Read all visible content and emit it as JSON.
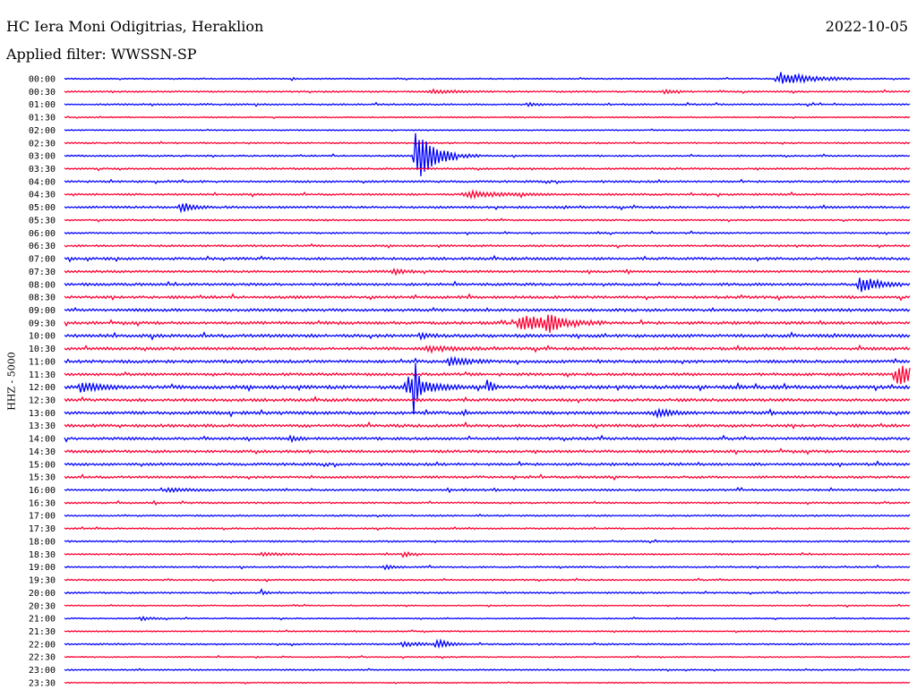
{
  "header": {
    "station": "HC Iera Moni Odigitrias, Heraklion",
    "date": "2022-10-05",
    "filter": "Applied filter: WWSSN-SP"
  },
  "chart_data": {
    "type": "line",
    "ylabel": "HHZ - 5000",
    "colors": [
      "#0000ff",
      "#ff0033"
    ],
    "rows": [
      "00:00",
      "00:30",
      "01:00",
      "01:30",
      "02:00",
      "02:30",
      "03:00",
      "03:30",
      "04:00",
      "04:30",
      "05:00",
      "05:30",
      "06:00",
      "06:30",
      "07:00",
      "07:30",
      "08:00",
      "08:30",
      "09:00",
      "09:30",
      "10:00",
      "10:30",
      "11:00",
      "11:30",
      "12:00",
      "12:30",
      "13:00",
      "13:30",
      "14:00",
      "14:30",
      "15:00",
      "15:30",
      "16:00",
      "16:30",
      "17:00",
      "17:30",
      "18:00",
      "18:30",
      "19:00",
      "19:30",
      "20:00",
      "20:30",
      "21:00",
      "21:30",
      "22:00",
      "22:30",
      "23:00",
      "23:30"
    ],
    "noise": [
      0.6,
      0.8,
      0.8,
      0.6,
      0.5,
      0.8,
      0.8,
      0.9,
      1.0,
      1.0,
      1.1,
      0.8,
      0.8,
      1.0,
      1.3,
      1.2,
      1.3,
      1.4,
      1.4,
      1.5,
      1.6,
      1.5,
      1.5,
      1.4,
      1.8,
      1.5,
      1.6,
      1.5,
      1.4,
      1.4,
      1.3,
      1.2,
      1.0,
      0.9,
      0.8,
      0.8,
      0.8,
      0.8,
      0.8,
      0.8,
      0.8,
      0.6,
      0.6,
      0.6,
      0.8,
      0.6,
      0.6,
      0.5
    ],
    "events": [
      {
        "row": 0,
        "t": 0.846,
        "dur": 0.035,
        "amp": 8
      },
      {
        "row": 0,
        "t": 0.268,
        "dur": 0.004,
        "amp": 2
      },
      {
        "row": 1,
        "t": 0.434,
        "dur": 0.03,
        "amp": 2
      },
      {
        "row": 1,
        "t": 0.708,
        "dur": 0.01,
        "amp": 3
      },
      {
        "row": 2,
        "t": 0.547,
        "dur": 0.012,
        "amp": 2
      },
      {
        "row": 6,
        "t": 0.415,
        "dur": 0.02,
        "amp": 22
      },
      {
        "row": 6,
        "t": 0.418,
        "dur": 0.03,
        "amp": 9
      },
      {
        "row": 9,
        "t": 0.476,
        "dur": 0.04,
        "amp": 4
      },
      {
        "row": 10,
        "t": 0.137,
        "dur": 0.013,
        "amp": 6
      },
      {
        "row": 15,
        "t": 0.388,
        "dur": 0.015,
        "amp": 3
      },
      {
        "row": 16,
        "t": 0.94,
        "dur": 0.02,
        "amp": 10
      },
      {
        "row": 19,
        "t": 0.54,
        "dur": 0.04,
        "amp": 10
      },
      {
        "row": 19,
        "t": 0.57,
        "dur": 0.01,
        "amp": 12
      },
      {
        "row": 20,
        "t": 0.42,
        "dur": 0.01,
        "amp": 4
      },
      {
        "row": 21,
        "t": 0.43,
        "dur": 0.03,
        "amp": 3
      },
      {
        "row": 22,
        "t": 0.455,
        "dur": 0.02,
        "amp": 5
      },
      {
        "row": 23,
        "t": 0.985,
        "dur": 0.03,
        "amp": 12
      },
      {
        "row": 24,
        "t": 0.406,
        "dur": 0.025,
        "amp": 12
      },
      {
        "row": 24,
        "t": 0.412,
        "dur": 0.004,
        "amp": 40
      },
      {
        "row": 24,
        "t": 0.499,
        "dur": 0.006,
        "amp": 9
      },
      {
        "row": 24,
        "t": 0.018,
        "dur": 0.02,
        "amp": 6
      },
      {
        "row": 26,
        "t": 0.7,
        "dur": 0.02,
        "amp": 4
      },
      {
        "row": 26,
        "t": 0.834,
        "dur": 0.003,
        "amp": 5
      },
      {
        "row": 28,
        "t": 0.265,
        "dur": 0.01,
        "amp": 3
      },
      {
        "row": 32,
        "t": 0.12,
        "dur": 0.03,
        "amp": 2
      },
      {
        "row": 37,
        "t": 0.233,
        "dur": 0.02,
        "amp": 2
      },
      {
        "row": 37,
        "t": 0.4,
        "dur": 0.01,
        "amp": 3
      },
      {
        "row": 38,
        "t": 0.378,
        "dur": 0.01,
        "amp": 3
      },
      {
        "row": 40,
        "t": 0.232,
        "dur": 0.005,
        "amp": 4
      },
      {
        "row": 42,
        "t": 0.09,
        "dur": 0.015,
        "amp": 2
      },
      {
        "row": 44,
        "t": 0.4,
        "dur": 0.02,
        "amp": 3
      },
      {
        "row": 44,
        "t": 0.44,
        "dur": 0.015,
        "amp": 5
      }
    ]
  }
}
